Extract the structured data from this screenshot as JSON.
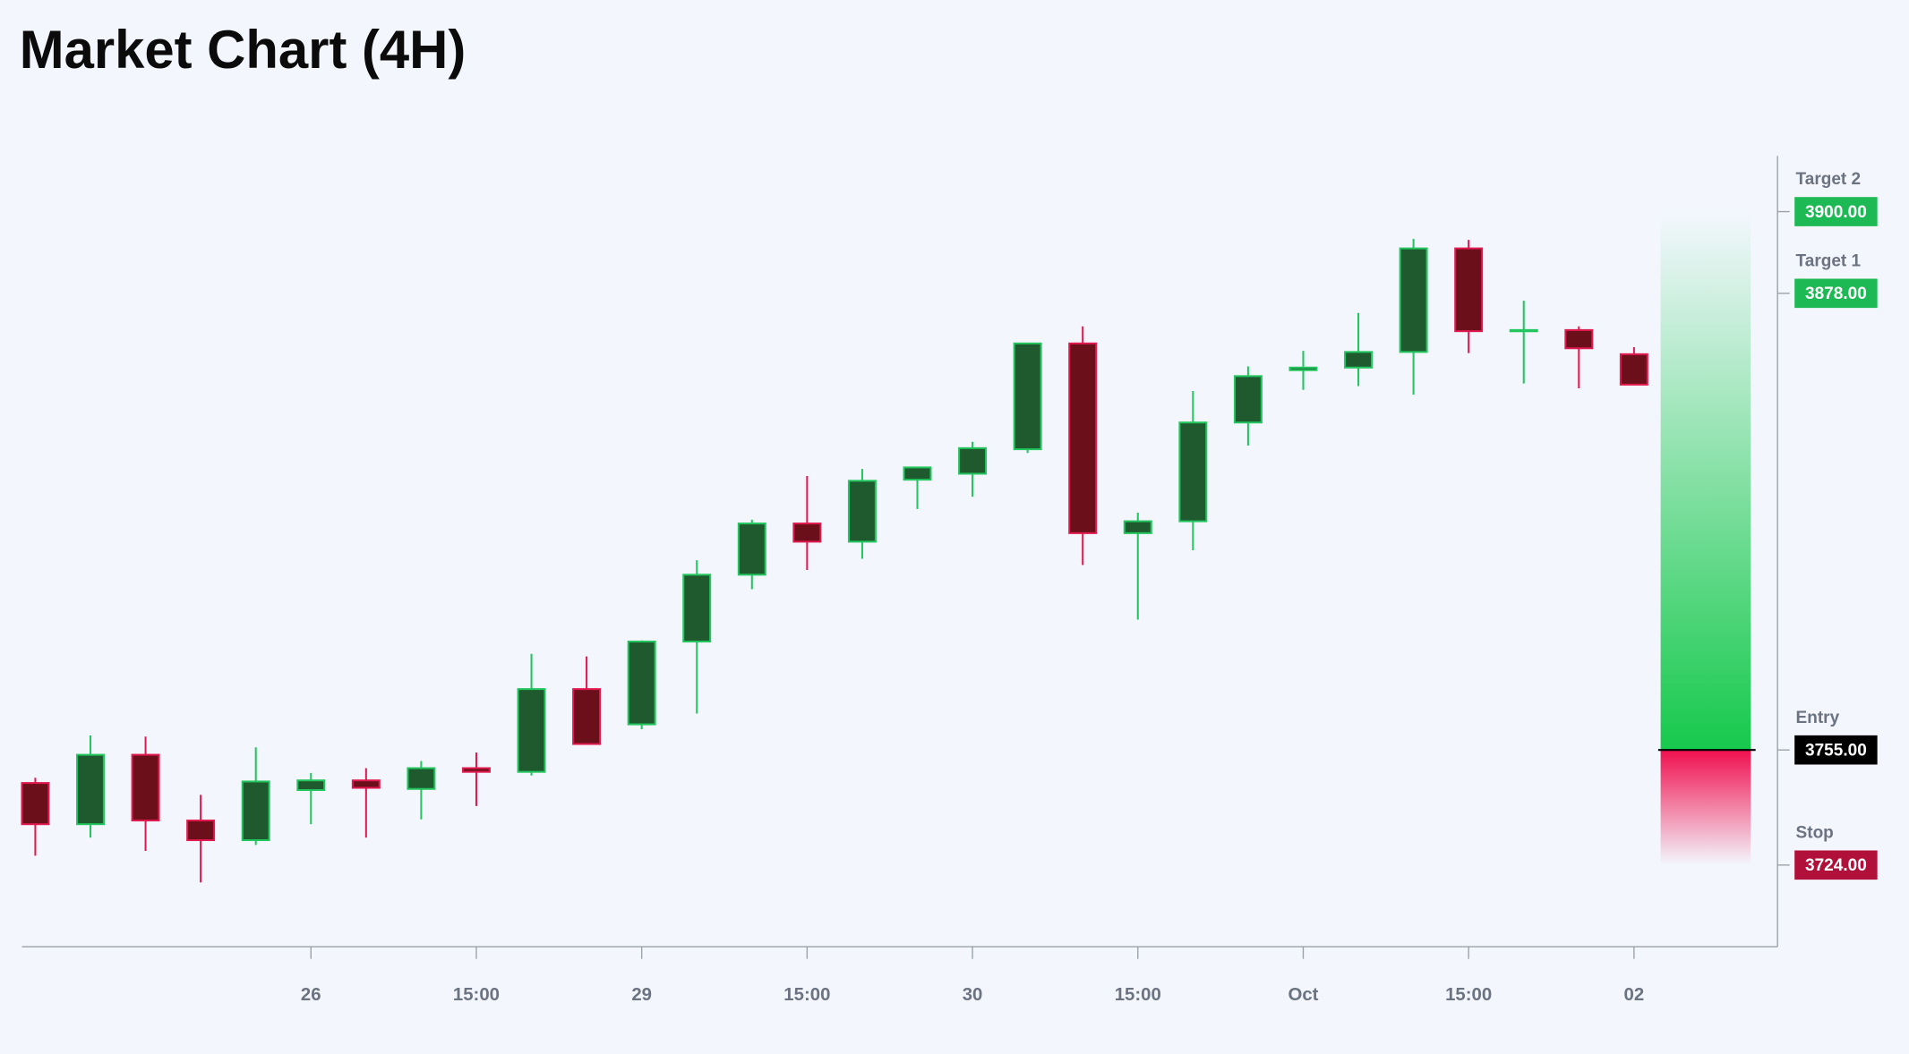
{
  "chart_data": {
    "type": "candlestick",
    "title": "Market Chart (4H)",
    "categories": [
      null,
      null,
      null,
      null,
      null,
      "26",
      null,
      null,
      "15:00",
      null,
      null,
      "29",
      null,
      null,
      "15:00",
      null,
      null,
      "30",
      null,
      null,
      "15:00",
      null,
      null,
      "Oct",
      null,
      null,
      "15:00",
      null,
      null,
      "02"
    ],
    "open": [
      3746.1,
      3735.0,
      3753.7,
      3736.0,
      3730.7,
      3744.2,
      3746.8,
      3744.5,
      3750.1,
      3749.1,
      3771.4,
      3761.9,
      3784.2,
      3802.2,
      3816.0,
      3811.1,
      3827.8,
      3829.4,
      3836.0,
      3864.5,
      3813.4,
      3816.6,
      3843.2,
      3857.3,
      3858.0,
      3862.2,
      3890.1,
      3867.8,
      3868.1,
      3861.6
    ],
    "high": [
      3747.5,
      3758.9,
      3758.6,
      3742.9,
      3755.7,
      3748.8,
      3750.1,
      3752.0,
      3754.3,
      3780.9,
      3780.2,
      3784.5,
      3806.1,
      3817.0,
      3828.8,
      3830.7,
      3831.1,
      3838.0,
      3864.5,
      3869.1,
      3818.9,
      3851.7,
      3858.3,
      3862.5,
      3872.7,
      3892.7,
      3892.4,
      3876.0,
      3869.1,
      3863.5
    ],
    "low": [
      3726.5,
      3731.4,
      3727.8,
      3719.3,
      3729.4,
      3735.0,
      3731.4,
      3736.3,
      3739.9,
      3748.1,
      3756.6,
      3760.6,
      3764.8,
      3798.3,
      3803.5,
      3806.5,
      3819.9,
      3823.2,
      3835.0,
      3804.8,
      3790.1,
      3808.8,
      3837.0,
      3852.0,
      3853.0,
      3850.7,
      3861.9,
      3853.7,
      3852.4,
      3853.4
    ],
    "close": [
      3735.0,
      3753.7,
      3736.0,
      3730.7,
      3746.5,
      3746.8,
      3744.8,
      3750.1,
      3749.1,
      3771.4,
      3756.6,
      3784.2,
      3802.2,
      3816.0,
      3811.1,
      3827.5,
      3831.1,
      3836.3,
      3864.5,
      3813.4,
      3816.6,
      3843.2,
      3855.7,
      3858.0,
      3862.2,
      3890.1,
      3867.8,
      3868.1,
      3863.2,
      3853.4
    ],
    "up_color": "#1f5a2e",
    "up_border": "#22c55e",
    "down_color": "#6b0f1a",
    "down_border": "#e0194f",
    "ylim": [
      3702,
      3915
    ],
    "yticks": [
      {
        "value": 3900,
        "label": "3900.00"
      },
      {
        "value": 3878,
        "label": "3878.00"
      },
      {
        "value": 3755,
        "label": "3755.00"
      },
      {
        "value": 3724,
        "label": "3724.00"
      }
    ],
    "level_names": [
      "Target 2",
      "Target 1",
      "Entry",
      "Stop"
    ],
    "level_colors": [
      "#1db954",
      "#1db954",
      "#000000",
      "#b0103a"
    ]
  }
}
